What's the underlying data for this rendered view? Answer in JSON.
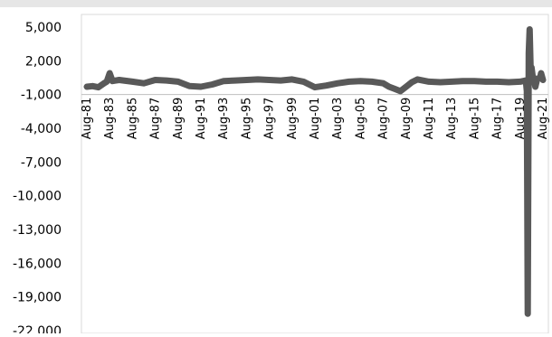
{
  "chart_data": {
    "type": "line",
    "title": "",
    "xlabel": "",
    "ylabel": "",
    "ylim": [
      -22000,
      5000
    ],
    "yticks": [
      5000,
      2000,
      -1000,
      -4000,
      -7000,
      -10000,
      -13000,
      -16000,
      -19000,
      -22000
    ],
    "ytick_labels": [
      "5,000",
      "2,000",
      "-1,000",
      "-4,000",
      "-7,000",
      "-10,000",
      "-13,000",
      "-16,000",
      "-19,000",
      "-22,000"
    ],
    "xlim": [
      "1981-08",
      "2021-08"
    ],
    "xtick_labels": [
      "Aug-81",
      "Aug-83",
      "Aug-85",
      "Aug-87",
      "Aug-89",
      "Aug-91",
      "Aug-93",
      "Aug-95",
      "Aug-97",
      "Aug-99",
      "Aug-01",
      "Aug-03",
      "Aug-05",
      "Aug-07",
      "Aug-09",
      "Aug-11",
      "Aug-13",
      "Aug-15",
      "Aug-17",
      "Aug-19",
      "Aug-21"
    ],
    "grid": false,
    "legend": "none",
    "series": [
      {
        "color": "#595959",
        "points": [
          [
            "1981-08",
            -300
          ],
          [
            "1982-02",
            -250
          ],
          [
            "1982-08",
            -350
          ],
          [
            "1983-02",
            0
          ],
          [
            "1983-05",
            150
          ],
          [
            "1983-08",
            900
          ],
          [
            "1983-11",
            200
          ],
          [
            "1984-06",
            300
          ],
          [
            "1985-08",
            150
          ],
          [
            "1986-08",
            0
          ],
          [
            "1987-08",
            300
          ],
          [
            "1988-08",
            250
          ],
          [
            "1989-08",
            150
          ],
          [
            "1990-08",
            -250
          ],
          [
            "1991-08",
            -300
          ],
          [
            "1992-08",
            -100
          ],
          [
            "1993-08",
            200
          ],
          [
            "1994-08",
            250
          ],
          [
            "1995-08",
            300
          ],
          [
            "1996-08",
            350
          ],
          [
            "1997-08",
            300
          ],
          [
            "1998-08",
            250
          ],
          [
            "1999-08",
            350
          ],
          [
            "2000-08",
            150
          ],
          [
            "2001-08",
            -350
          ],
          [
            "2002-08",
            -200
          ],
          [
            "2003-08",
            0
          ],
          [
            "2004-08",
            150
          ],
          [
            "2005-08",
            200
          ],
          [
            "2006-08",
            150
          ],
          [
            "2007-08",
            0
          ],
          [
            "2008-02",
            -300
          ],
          [
            "2008-08",
            -500
          ],
          [
            "2009-02",
            -700
          ],
          [
            "2009-08",
            -300
          ],
          [
            "2010-02",
            100
          ],
          [
            "2010-08",
            350
          ],
          [
            "2011-08",
            150
          ],
          [
            "2012-08",
            100
          ],
          [
            "2013-08",
            150
          ],
          [
            "2014-08",
            200
          ],
          [
            "2015-08",
            200
          ],
          [
            "2016-08",
            150
          ],
          [
            "2017-08",
            150
          ],
          [
            "2018-08",
            100
          ],
          [
            "2019-08",
            150
          ],
          [
            "2020-02",
            250
          ],
          [
            "2020-03",
            -700
          ],
          [
            "2020-04",
            -20500
          ],
          [
            "2020-05",
            2700
          ],
          [
            "2020-06",
            4800
          ],
          [
            "2020-07",
            1500
          ],
          [
            "2020-08",
            1400
          ],
          [
            "2020-09",
            700
          ],
          [
            "2020-10",
            500
          ],
          [
            "2020-11",
            200
          ],
          [
            "2020-12",
            -300
          ],
          [
            "2021-02",
            400
          ],
          [
            "2021-05",
            500
          ],
          [
            "2021-06",
            900
          ],
          [
            "2021-08",
            300
          ]
        ]
      }
    ]
  }
}
